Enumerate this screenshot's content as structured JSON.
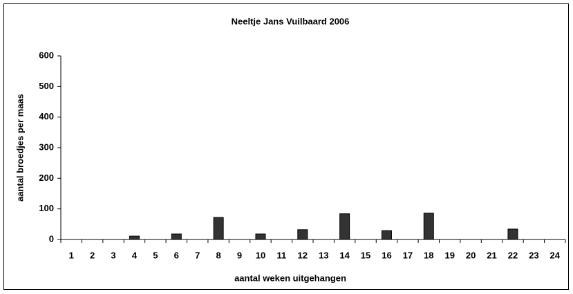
{
  "chart_data": {
    "type": "bar",
    "title": "Neeltje Jans Vuilbaard 2006",
    "x_label": "aantal weken uitgehangen",
    "y_label": "aantal broedjes per maas",
    "categories": [
      "1",
      "2",
      "3",
      "4",
      "5",
      "6",
      "7",
      "8",
      "9",
      "10",
      "11",
      "12",
      "13",
      "14",
      "15",
      "16",
      "17",
      "18",
      "19",
      "20",
      "21",
      "22",
      "23",
      "24"
    ],
    "values": [
      0,
      0,
      0,
      11,
      0,
      18,
      0,
      72,
      0,
      18,
      0,
      32,
      0,
      84,
      0,
      29,
      0,
      86,
      0,
      0,
      0,
      34,
      0,
      0
    ],
    "color": "#333333",
    "ylim": [
      0,
      600
    ],
    "yticks": [
      0,
      100,
      200,
      300,
      400,
      500,
      600
    ],
    "grid": false
  }
}
